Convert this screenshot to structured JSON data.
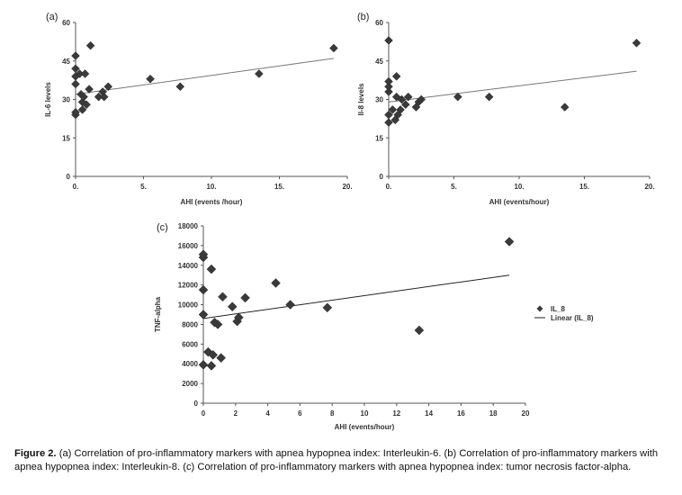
{
  "chart_data": [
    {
      "panel": "(a)",
      "type": "scatter",
      "xlabel": "AHI (events /hour)",
      "ylabel": "IL-6 levels",
      "xlim": [
        0,
        20
      ],
      "ylim": [
        0,
        60
      ],
      "xticks": [
        "0.",
        "5.",
        "10.",
        "15.",
        "20."
      ],
      "yticks": [
        "0",
        "15",
        "30",
        "45",
        "60"
      ],
      "points": [
        [
          0.0,
          24
        ],
        [
          0.0,
          25
        ],
        [
          0.0,
          36
        ],
        [
          0.0,
          39
        ],
        [
          0.0,
          42
        ],
        [
          0.0,
          47
        ],
        [
          0.3,
          40
        ],
        [
          0.4,
          32
        ],
        [
          0.5,
          26
        ],
        [
          0.5,
          29
        ],
        [
          0.6,
          31
        ],
        [
          0.7,
          40
        ],
        [
          0.8,
          28
        ],
        [
          1.0,
          34
        ],
        [
          1.1,
          51
        ],
        [
          1.7,
          31
        ],
        [
          2.0,
          33
        ],
        [
          2.1,
          31
        ],
        [
          2.4,
          35
        ],
        [
          5.5,
          38
        ],
        [
          7.7,
          35
        ],
        [
          13.5,
          40
        ],
        [
          19.0,
          50
        ]
      ],
      "trendline": [
        [
          0,
          32
        ],
        [
          19,
          46
        ]
      ],
      "marker_color": "#3a3a3a",
      "grid": false
    },
    {
      "panel": "(b)",
      "type": "scatter",
      "xlabel": "AHI (events/hour)",
      "ylabel": "Il-8 levels",
      "xlim": [
        0,
        20
      ],
      "ylim": [
        0,
        60
      ],
      "xticks": [
        "0.",
        "5.",
        "10.",
        "15.",
        "20."
      ],
      "yticks": [
        "0",
        "15",
        "30",
        "45",
        "60"
      ],
      "points": [
        [
          0.0,
          21
        ],
        [
          0.0,
          24
        ],
        [
          0.0,
          33
        ],
        [
          0.0,
          35
        ],
        [
          0.0,
          37
        ],
        [
          0.0,
          53
        ],
        [
          0.3,
          26
        ],
        [
          0.5,
          22
        ],
        [
          0.6,
          39
        ],
        [
          0.6,
          31
        ],
        [
          0.7,
          24
        ],
        [
          0.9,
          26
        ],
        [
          1.0,
          30
        ],
        [
          1.3,
          28
        ],
        [
          1.5,
          31
        ],
        [
          2.1,
          27
        ],
        [
          2.3,
          29
        ],
        [
          2.5,
          30
        ],
        [
          5.3,
          31
        ],
        [
          7.7,
          31
        ],
        [
          13.5,
          27
        ],
        [
          19.0,
          52
        ]
      ],
      "trendline": [
        [
          0,
          29
        ],
        [
          19,
          41
        ]
      ],
      "marker_color": "#3a3a3a",
      "grid": false
    },
    {
      "panel": "(c)",
      "type": "scatter",
      "xlabel": "AHI (events/hour)",
      "ylabel": "TNF-alpha",
      "xlim": [
        0,
        20
      ],
      "ylim": [
        0,
        18000
      ],
      "xticks": [
        "0",
        "2",
        "4",
        "6",
        "8",
        "10",
        "12",
        "14",
        "16",
        "18",
        "20"
      ],
      "yticks": [
        "0",
        "2000",
        "4000",
        "6000",
        "8000",
        "10000",
        "12000",
        "14000",
        "16000",
        "18000"
      ],
      "points": [
        [
          0.0,
          3900
        ],
        [
          0.0,
          9000
        ],
        [
          0.0,
          11500
        ],
        [
          0.0,
          14800
        ],
        [
          0.0,
          15100
        ],
        [
          0.3,
          5200
        ],
        [
          0.5,
          13600
        ],
        [
          0.5,
          3800
        ],
        [
          0.6,
          4900
        ],
        [
          0.7,
          8200
        ],
        [
          0.9,
          8000
        ],
        [
          1.1,
          4600
        ],
        [
          1.2,
          10800
        ],
        [
          1.8,
          9800
        ],
        [
          2.1,
          8300
        ],
        [
          2.2,
          8700
        ],
        [
          2.6,
          10700
        ],
        [
          4.5,
          12200
        ],
        [
          5.4,
          10000
        ],
        [
          7.7,
          9700
        ],
        [
          13.4,
          7400
        ],
        [
          19.0,
          16400
        ]
      ],
      "trendline": [
        [
          0,
          8600
        ],
        [
          19,
          13000
        ]
      ],
      "legend": {
        "marker_label": "IL_8",
        "line_label": "Linear (IL_8)",
        "position": "right"
      },
      "marker_color": "#3a3a3a",
      "grid": false
    }
  ],
  "caption": {
    "bold": "Figure 2.",
    "text": " (a) Correlation of pro-inflammatory markers with apnea hypopnea index: Interleukin-6. (b) Correlation of pro-inflammatory markers with apnea hypopnea index: Interleukin-8. (c) Correlation of pro-inflammatory markers with apnea hypopnea index: tumor necrosis factor-alpha."
  }
}
